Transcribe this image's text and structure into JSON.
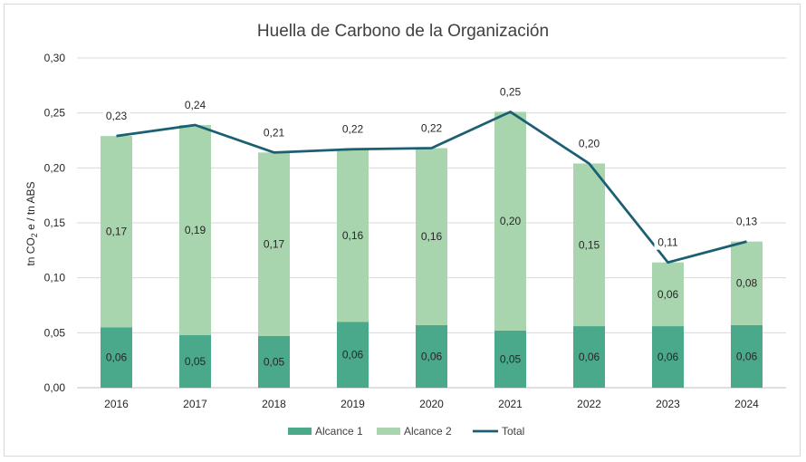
{
  "chart_data": {
    "type": "bar",
    "stacked": true,
    "title": "Huella de Carbono de la Organización",
    "ylabel": "tn CO₂ e / tn ABS",
    "ylabel_parts": {
      "pre": "tn CO",
      "sub": "2",
      "post": " e / tn ABS"
    },
    "xlabel": "",
    "ylim": [
      0,
      0.3
    ],
    "yticks": [
      0,
      0.05,
      0.1,
      0.15,
      0.2,
      0.25,
      0.3
    ],
    "ytick_labels": [
      "0,00",
      "0,05",
      "0,10",
      "0,15",
      "0,20",
      "0,25",
      "0,30"
    ],
    "grid": true,
    "legend_position": "bottom",
    "categories": [
      "2016",
      "2017",
      "2018",
      "2019",
      "2020",
      "2021",
      "2022",
      "2023",
      "2024"
    ],
    "series": [
      {
        "name": "Alcance 1",
        "kind": "bar",
        "color": "#4aa98b",
        "values": [
          0.055,
          0.048,
          0.047,
          0.06,
          0.057,
          0.052,
          0.056,
          0.056,
          0.057
        ],
        "labels": [
          "0,06",
          "0,05",
          "0,05",
          "0,06",
          "0,06",
          "0,05",
          "0,06",
          "0,06",
          "0,06"
        ]
      },
      {
        "name": "Alcance 2",
        "kind": "bar",
        "color": "#a8d5ae",
        "values": [
          0.174,
          0.191,
          0.167,
          0.157,
          0.161,
          0.199,
          0.148,
          0.058,
          0.076
        ],
        "labels": [
          "0,17",
          "0,19",
          "0,17",
          "0,16",
          "0,16",
          "0,20",
          "0,15",
          "0,06",
          "0,08"
        ]
      },
      {
        "name": "Total",
        "kind": "line",
        "color": "#1b5f73",
        "values": [
          0.229,
          0.239,
          0.214,
          0.217,
          0.218,
          0.251,
          0.204,
          0.114,
          0.133
        ],
        "labels": [
          "0,23",
          "0,24",
          "0,21",
          "0,22",
          "0,22",
          "0,25",
          "0,20",
          "0,11",
          "0,13"
        ]
      }
    ]
  }
}
